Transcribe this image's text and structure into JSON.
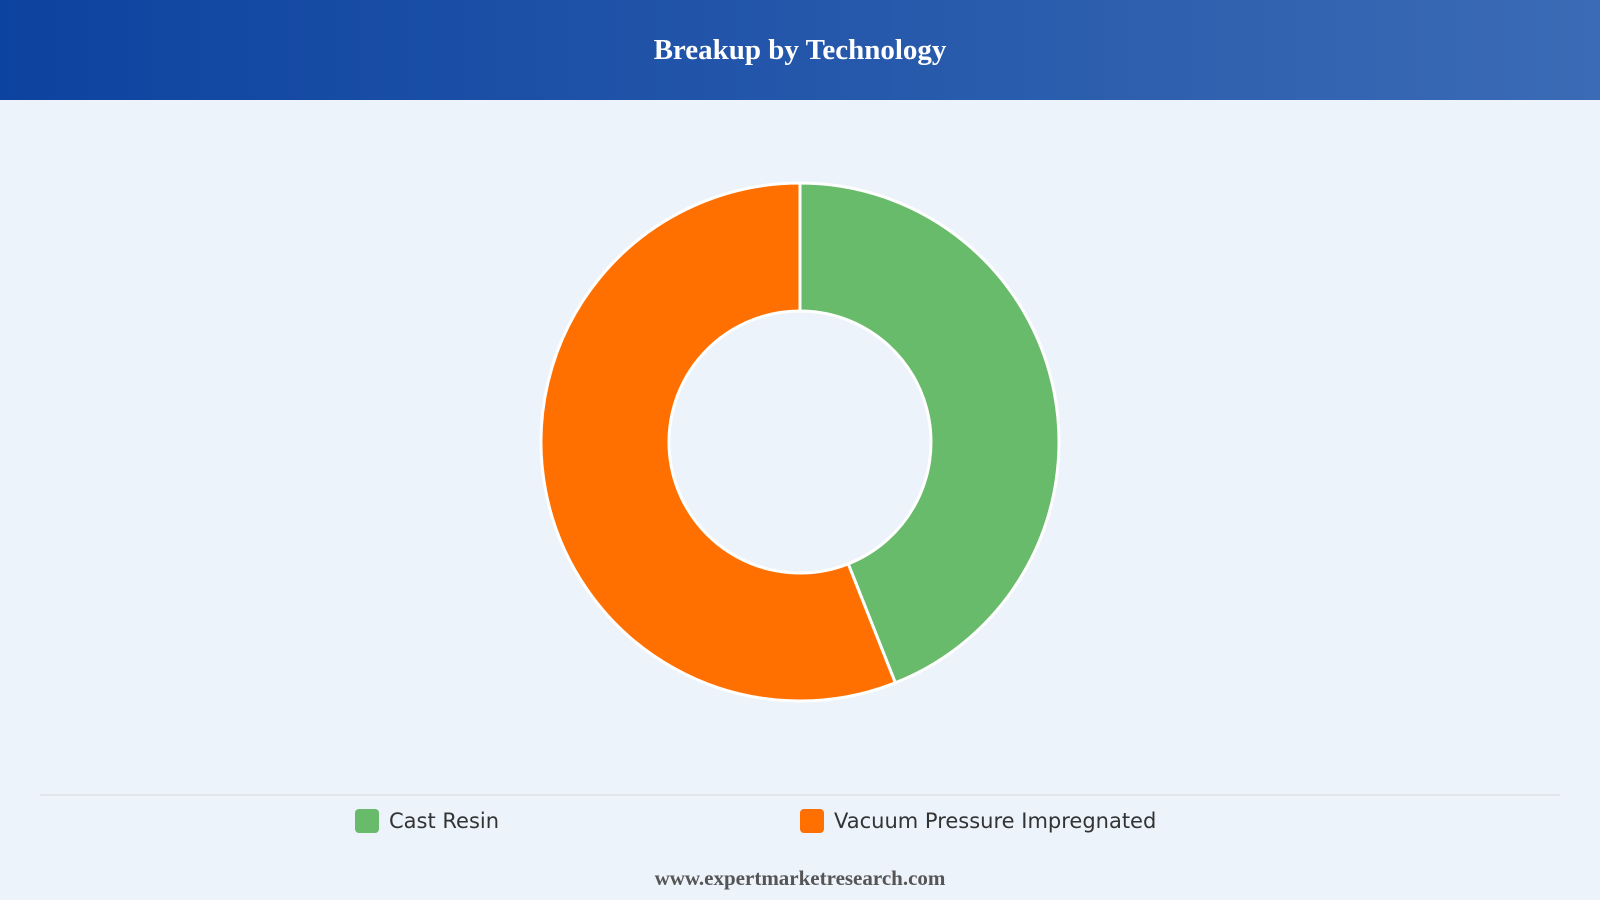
{
  "chart_data": {
    "type": "doughnut",
    "title": "Breakup by Technology",
    "categories": [
      "Cast Resin",
      "Vacuum Pressure Impregnated"
    ],
    "values": [
      44,
      56
    ],
    "colors": [
      "#69bb6c",
      "#ff7000"
    ],
    "source": "www.expertmarketresearch.com"
  }
}
